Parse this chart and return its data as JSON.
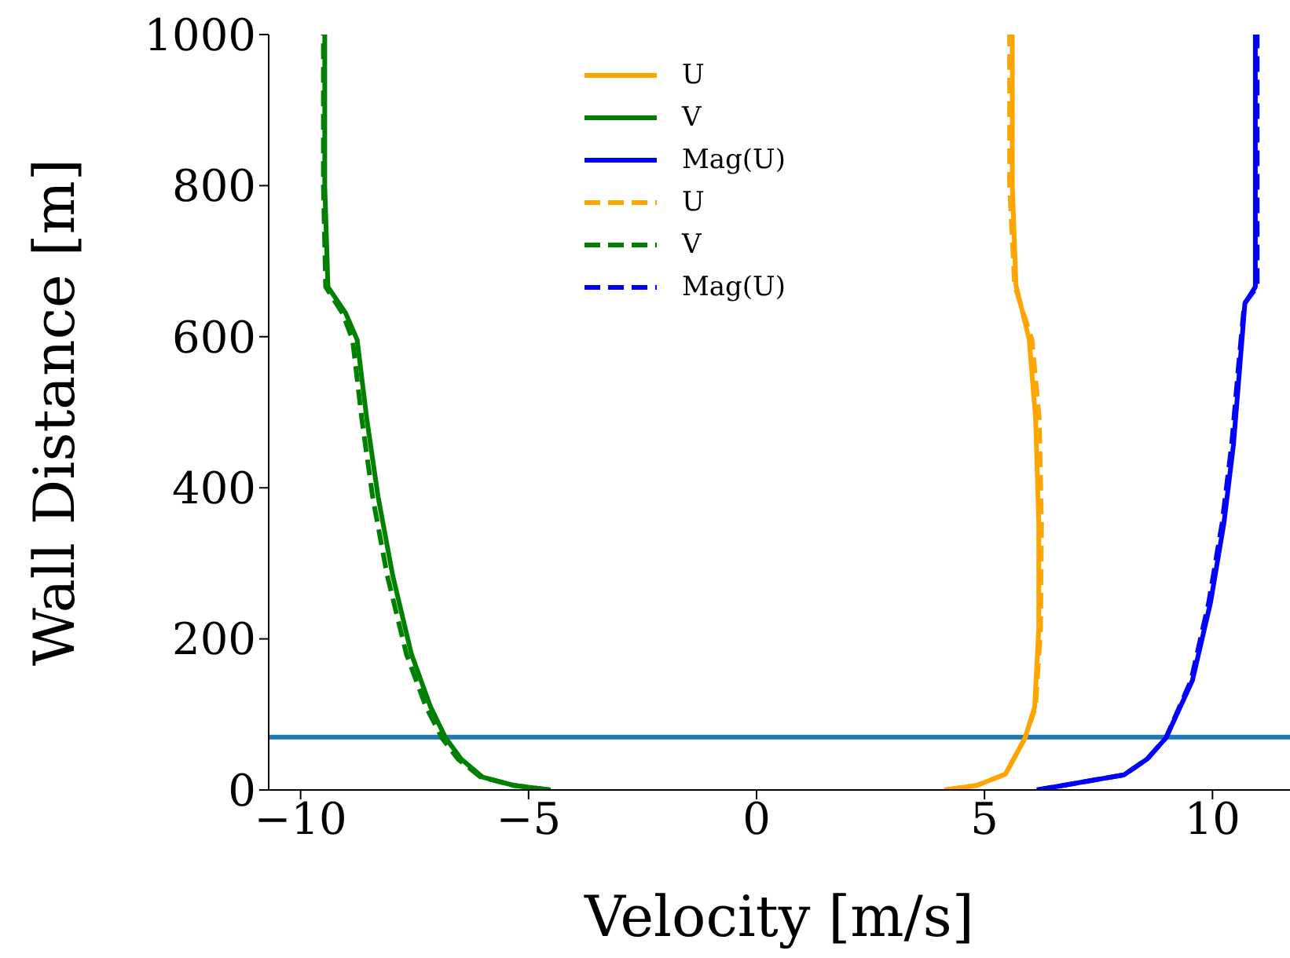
{
  "chart_data": {
    "type": "line",
    "xlabel": "Velocity [m/s]",
    "ylabel": "Wall Distance [m]",
    "xlim": [
      -10.7,
      11.7
    ],
    "xticks": [
      -10,
      -5,
      0,
      5,
      10
    ],
    "ylim": [
      0,
      1000
    ],
    "yticks": [
      0,
      200,
      400,
      600,
      800,
      1000
    ],
    "grid": false,
    "legend": "top",
    "marker": "none",
    "series": [
      {
        "name": "U",
        "color": "#ffa500",
        "line_style": "solid",
        "x": [
          4.13,
          4.83,
          5.46,
          5.89,
          6.1,
          6.19,
          6.19,
          6.12,
          5.98,
          5.69,
          5.61,
          5.61
        ],
        "values": [
          0,
          6,
          21,
          69,
          110,
          214,
          353,
          492,
          596,
          668,
          800,
          1000
        ]
      },
      {
        "name": "V",
        "color": "#008000",
        "line_style": "solid",
        "x": [
          -4.52,
          -5.32,
          -6.01,
          -6.48,
          -6.82,
          -7.15,
          -7.57,
          -7.98,
          -8.3,
          -8.55,
          -8.76,
          -9.01,
          -9.4,
          -9.47,
          -9.47
        ],
        "values": [
          0,
          6,
          17,
          41,
          69,
          110,
          180,
          284,
          388,
          492,
          596,
          631,
          666,
          800,
          1000
        ]
      },
      {
        "name": "Mag(U)",
        "color": "#0000ff",
        "line_style": "solid",
        "x": [
          6.15,
          8.06,
          8.57,
          8.98,
          9.56,
          9.96,
          10.25,
          10.46,
          10.6,
          10.71,
          10.94,
          10.94
        ],
        "values": [
          0,
          20,
          41,
          69,
          145,
          249,
          353,
          457,
          561,
          644,
          666,
          1000
        ]
      },
      {
        "name": "U",
        "color": "#ffa500",
        "line_style": "dashed",
        "x": [
          4.13,
          4.83,
          5.46,
          5.89,
          6.12,
          6.23,
          6.25,
          6.2,
          6.04,
          5.66,
          5.55,
          5.55
        ],
        "values": [
          0,
          6,
          21,
          69,
          110,
          214,
          353,
          492,
          596,
          668,
          800,
          1000
        ]
      },
      {
        "name": "V",
        "color": "#008000",
        "line_style": "dashed",
        "x": [
          -4.52,
          -5.32,
          -6.05,
          -6.55,
          -6.9,
          -7.25,
          -7.68,
          -8.1,
          -8.42,
          -8.66,
          -8.86,
          -9.08,
          -9.45,
          -9.5,
          -9.5
        ],
        "values": [
          0,
          6,
          17,
          41,
          69,
          110,
          180,
          284,
          388,
          492,
          596,
          631,
          666,
          800,
          1000
        ]
      },
      {
        "name": "Mag(U)",
        "color": "#0000ff",
        "line_style": "dashed",
        "x": [
          6.15,
          8.06,
          8.57,
          8.98,
          9.53,
          9.92,
          10.21,
          10.42,
          10.57,
          10.7,
          10.98,
          10.98
        ],
        "values": [
          0,
          20,
          41,
          69,
          145,
          249,
          353,
          457,
          561,
          644,
          666,
          1000
        ]
      }
    ],
    "ref_lines": [
      {
        "axis": "y",
        "value": 70,
        "label": null,
        "color": "#1f77b4"
      }
    ]
  }
}
